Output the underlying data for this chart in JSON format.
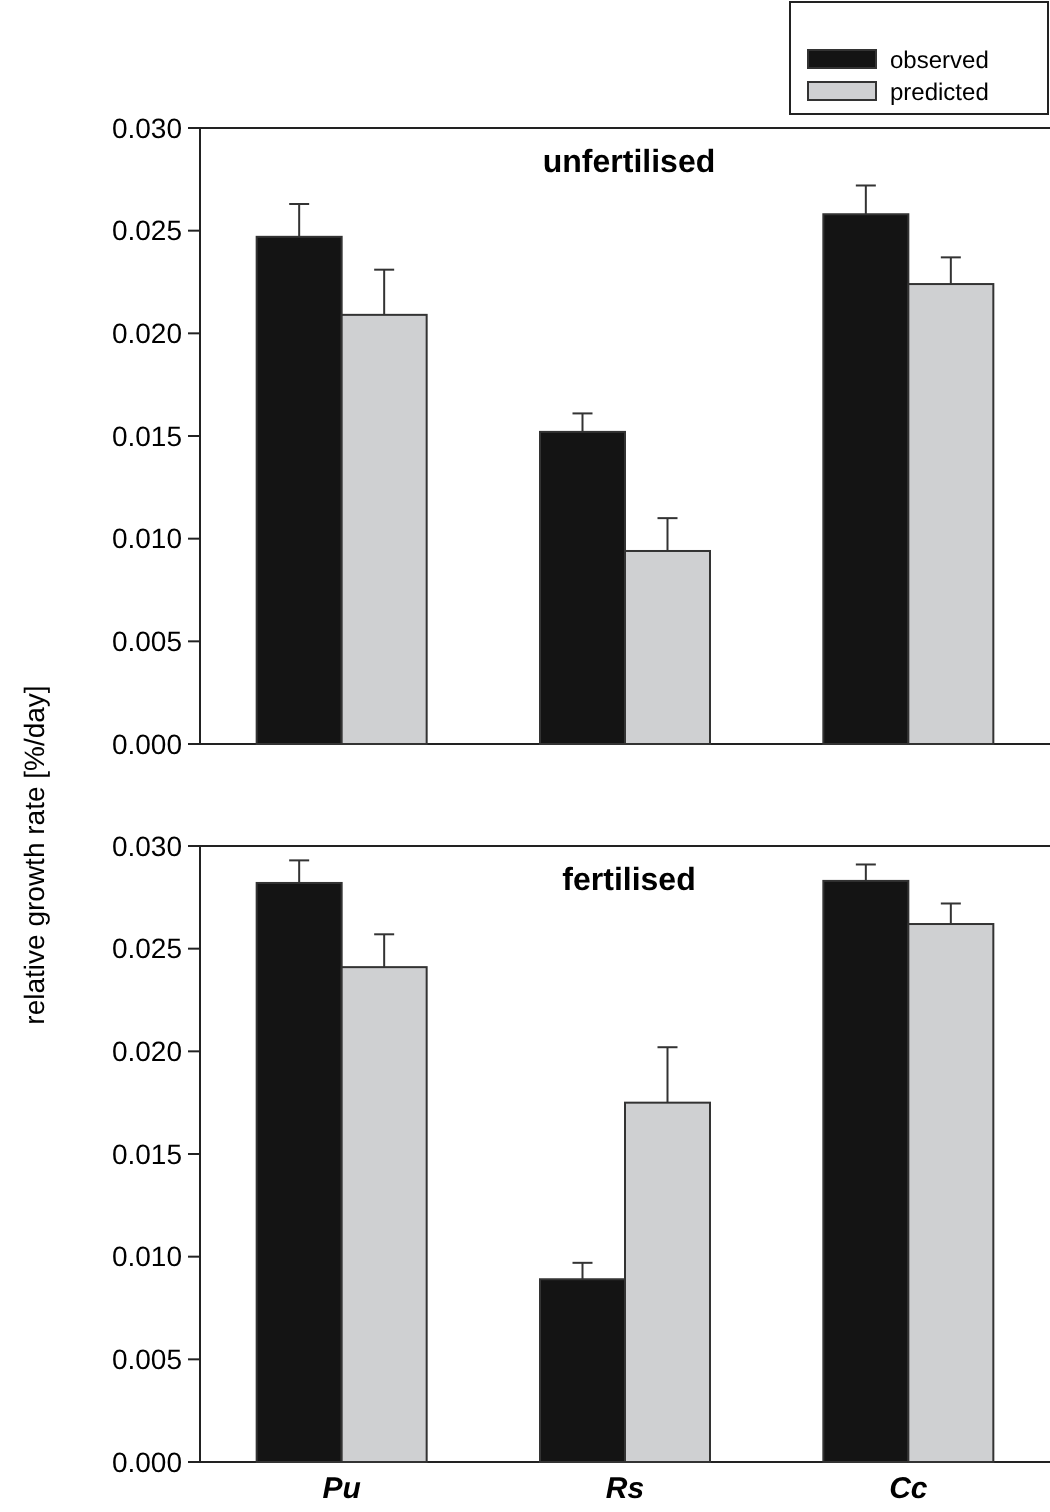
{
  "chart_data": [
    {
      "type": "bar",
      "title": "unfertilised",
      "ylabel": "relative growth rate [%/day]",
      "categories": [
        null,
        null,
        null
      ],
      "legend": "top right",
      "tick_labels": "y",
      "ylim": [
        0,
        0.03
      ],
      "yticks": [
        {
          "value": 0,
          "label": "0.000"
        },
        {
          "value": 0.005,
          "label": "0.005"
        },
        {
          "value": 0.01,
          "label": "0.010"
        },
        {
          "value": 0.015,
          "label": "0.015"
        },
        {
          "value": 0.02,
          "label": "0.020"
        },
        {
          "value": 0.025,
          "label": "0.025"
        },
        {
          "value": 0.03,
          "label": "0.030"
        }
      ],
      "series": [
        {
          "name": "observed",
          "color": "#141414",
          "values": [
            0.0247,
            0.0152,
            0.0258
          ],
          "errors": [
            [
              0.0247,
              0.0263
            ],
            [
              0.0152,
              0.0161
            ],
            [
              0.0258,
              0.0272
            ]
          ]
        },
        {
          "name": "predicted",
          "color": "#cfd0d2",
          "values": [
            0.0209,
            0.0094,
            0.0224
          ],
          "errors": [
            [
              0.0209,
              0.0231
            ],
            [
              0.0094,
              0.011
            ],
            [
              0.0224,
              0.0237
            ]
          ]
        }
      ]
    },
    {
      "type": "bar",
      "title": "fertilised",
      "categories": [
        "Pu",
        "Rs",
        "Cc"
      ],
      "ylim": [
        0,
        0.03
      ],
      "yticks": [
        {
          "value": 0,
          "label": "0.000"
        },
        {
          "value": 0.005,
          "label": "0.005"
        },
        {
          "value": 0.01,
          "label": "0.010"
        },
        {
          "value": 0.015,
          "label": "0.015"
        },
        {
          "value": 0.02,
          "label": "0.020"
        },
        {
          "value": 0.025,
          "label": "0.025"
        },
        {
          "value": 0.03,
          "label": "0.030"
        }
      ],
      "series": [
        {
          "color": "#141414",
          "values": [
            0.0282,
            0.0089,
            0.0283
          ],
          "errors": [
            [
              0.0282,
              0.0293
            ],
            [
              0.0089,
              0.0097
            ],
            [
              0.0283,
              0.0291
            ]
          ]
        },
        {
          "color": "#cfd0d2",
          "values": [
            0.0241,
            0.0175,
            0.0262
          ],
          "errors": [
            [
              0.0241,
              0.0257
            ],
            [
              0.0175,
              0.0202
            ],
            [
              0.0262,
              0.0272
            ]
          ]
        }
      ]
    }
  ]
}
